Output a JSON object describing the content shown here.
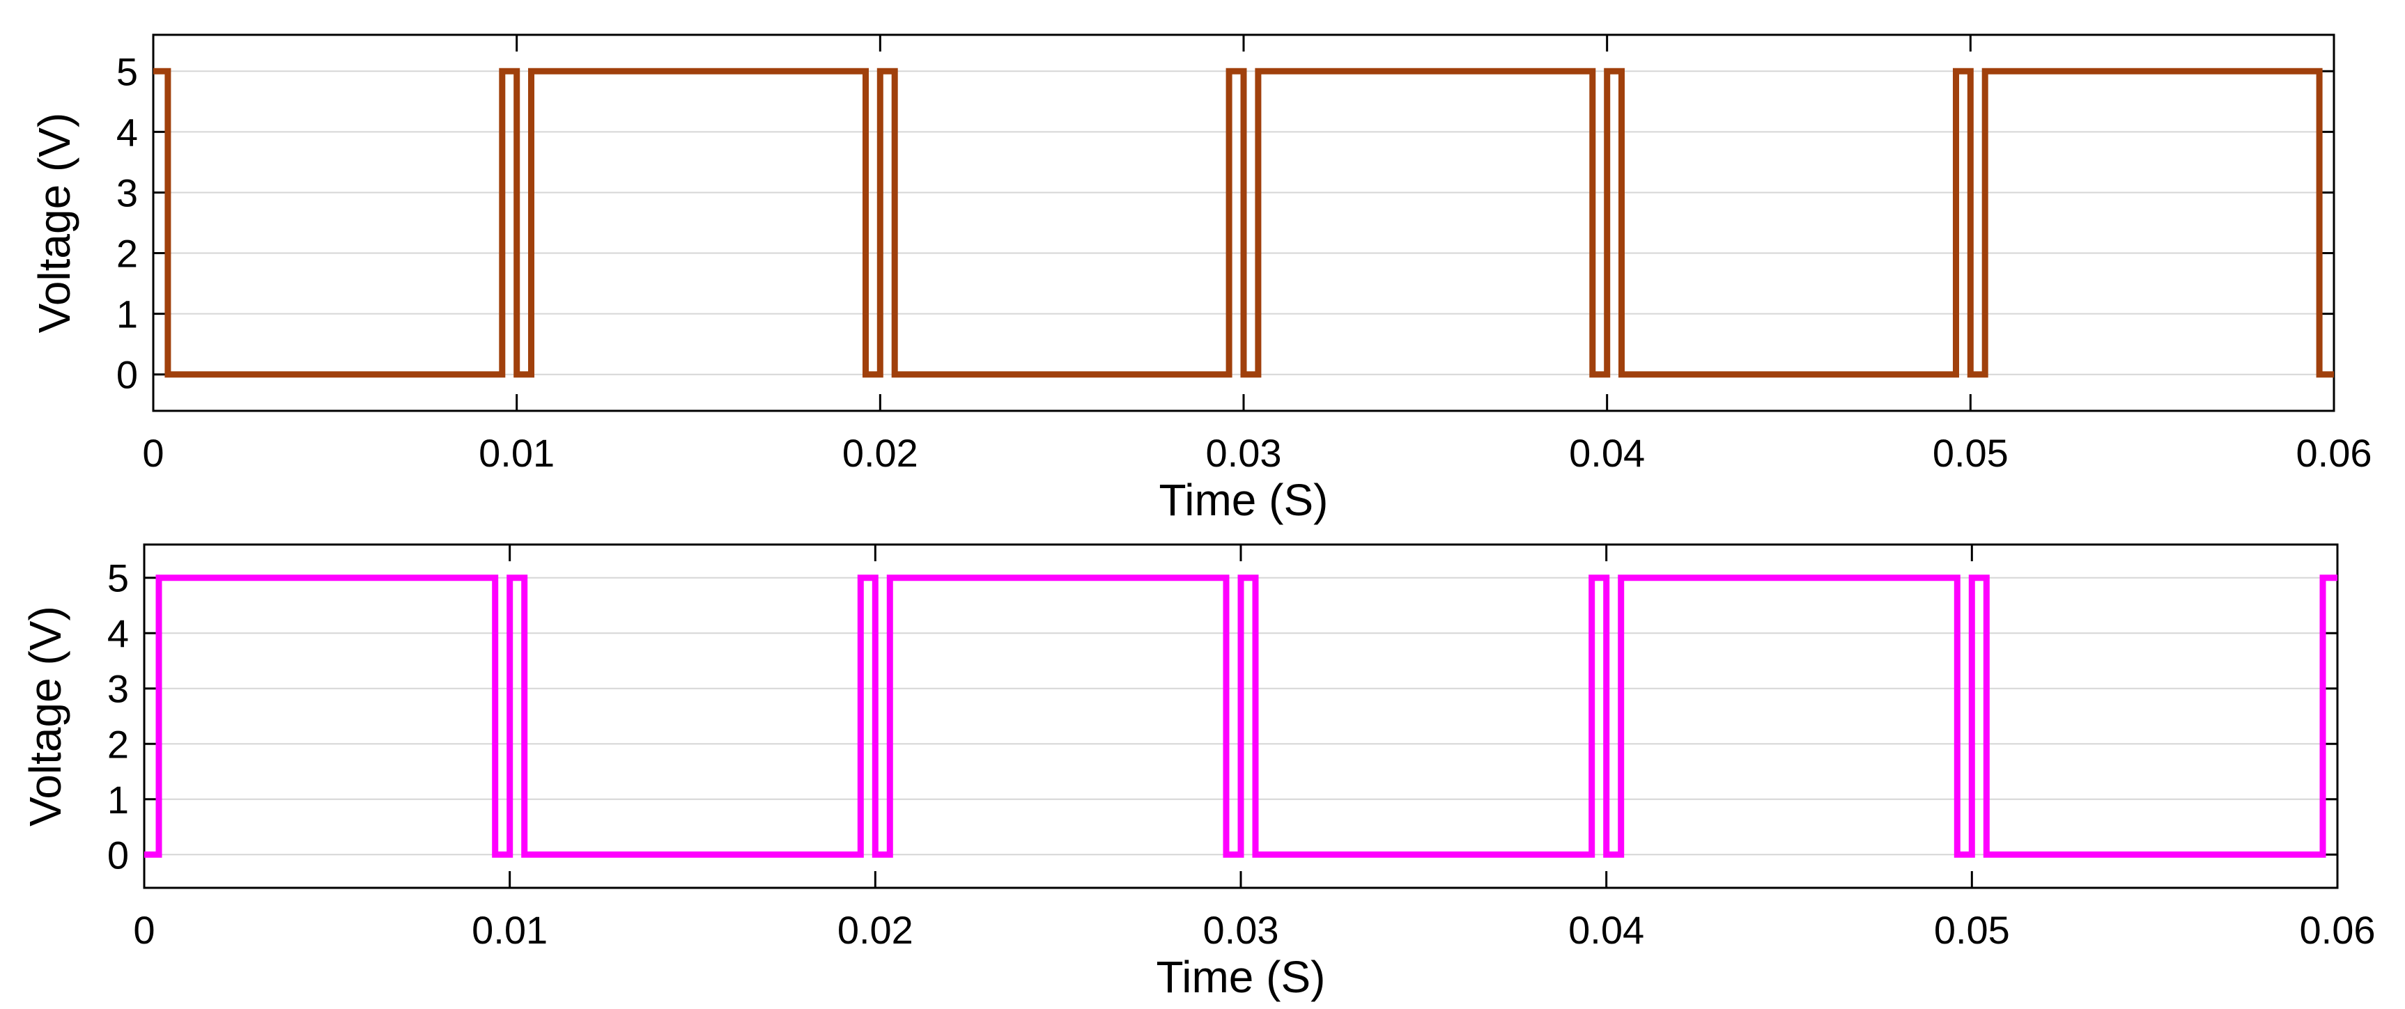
{
  "chart_data": [
    {
      "type": "line",
      "xlabel": "Time (S)",
      "ylabel": "Voltage (V)",
      "xlim": [
        0,
        0.06
      ],
      "ylim": [
        -0.6,
        5.6
      ],
      "xticks": [
        0,
        0.01,
        0.02,
        0.03,
        0.04,
        0.05,
        0.06
      ],
      "xtick_labels": [
        "0",
        "0.01",
        "0.02",
        "0.03",
        "0.04",
        "0.05",
        "0.06"
      ],
      "yticks": [
        0,
        1,
        2,
        3,
        4,
        5
      ],
      "ytick_labels": [
        "0",
        "1",
        "2",
        "3",
        "4",
        "5"
      ],
      "grid": "horizontal",
      "color": "#A0400C",
      "series": [
        {
          "x": [
            0,
            0.0004,
            0.0004,
            0.0096,
            0.0096,
            0.01,
            0.01,
            0.0104,
            0.0104,
            0.0196,
            0.0196,
            0.02,
            0.02,
            0.0204,
            0.0204,
            0.0296,
            0.0296,
            0.03,
            0.03,
            0.0304,
            0.0304,
            0.0396,
            0.0396,
            0.04,
            0.04,
            0.0404,
            0.0404,
            0.0496,
            0.0496,
            0.05,
            0.05,
            0.0504,
            0.0504,
            0.0596,
            0.0596,
            0.06
          ],
          "y": [
            5,
            5,
            0,
            0,
            5,
            5,
            0,
            0,
            5,
            5,
            0,
            0,
            5,
            5,
            0,
            0,
            5,
            5,
            0,
            0,
            5,
            5,
            0,
            0,
            5,
            5,
            0,
            0,
            5,
            5,
            0,
            0,
            5,
            5,
            0,
            0
          ]
        }
      ]
    },
    {
      "type": "line",
      "xlabel": "Time (S)",
      "ylabel": "Voltage (V)",
      "xlim": [
        0,
        0.06
      ],
      "ylim": [
        -0.6,
        5.6
      ],
      "xticks": [
        0,
        0.01,
        0.02,
        0.03,
        0.04,
        0.05,
        0.06
      ],
      "xtick_labels": [
        "0",
        "0.01",
        "0.02",
        "0.03",
        "0.04",
        "0.05",
        "0.06"
      ],
      "yticks": [
        0,
        1,
        2,
        3,
        4,
        5
      ],
      "ytick_labels": [
        "0",
        "1",
        "2",
        "3",
        "4",
        "5"
      ],
      "grid": "horizontal",
      "color": "#FF00FF",
      "series": [
        {
          "x": [
            0,
            0.0004,
            0.0004,
            0.0096,
            0.0096,
            0.01,
            0.01,
            0.0104,
            0.0104,
            0.0196,
            0.0196,
            0.02,
            0.02,
            0.0204,
            0.0204,
            0.0296,
            0.0296,
            0.03,
            0.03,
            0.0304,
            0.0304,
            0.0396,
            0.0396,
            0.04,
            0.04,
            0.0404,
            0.0404,
            0.0496,
            0.0496,
            0.05,
            0.05,
            0.0504,
            0.0504,
            0.0596,
            0.0596,
            0.06
          ],
          "y": [
            0,
            0,
            5,
            5,
            0,
            0,
            5,
            5,
            0,
            0,
            5,
            5,
            0,
            0,
            5,
            5,
            0,
            0,
            5,
            5,
            0,
            0,
            5,
            5,
            0,
            0,
            5,
            5,
            0,
            0,
            5,
            5,
            0,
            0,
            5,
            5
          ]
        }
      ]
    }
  ]
}
